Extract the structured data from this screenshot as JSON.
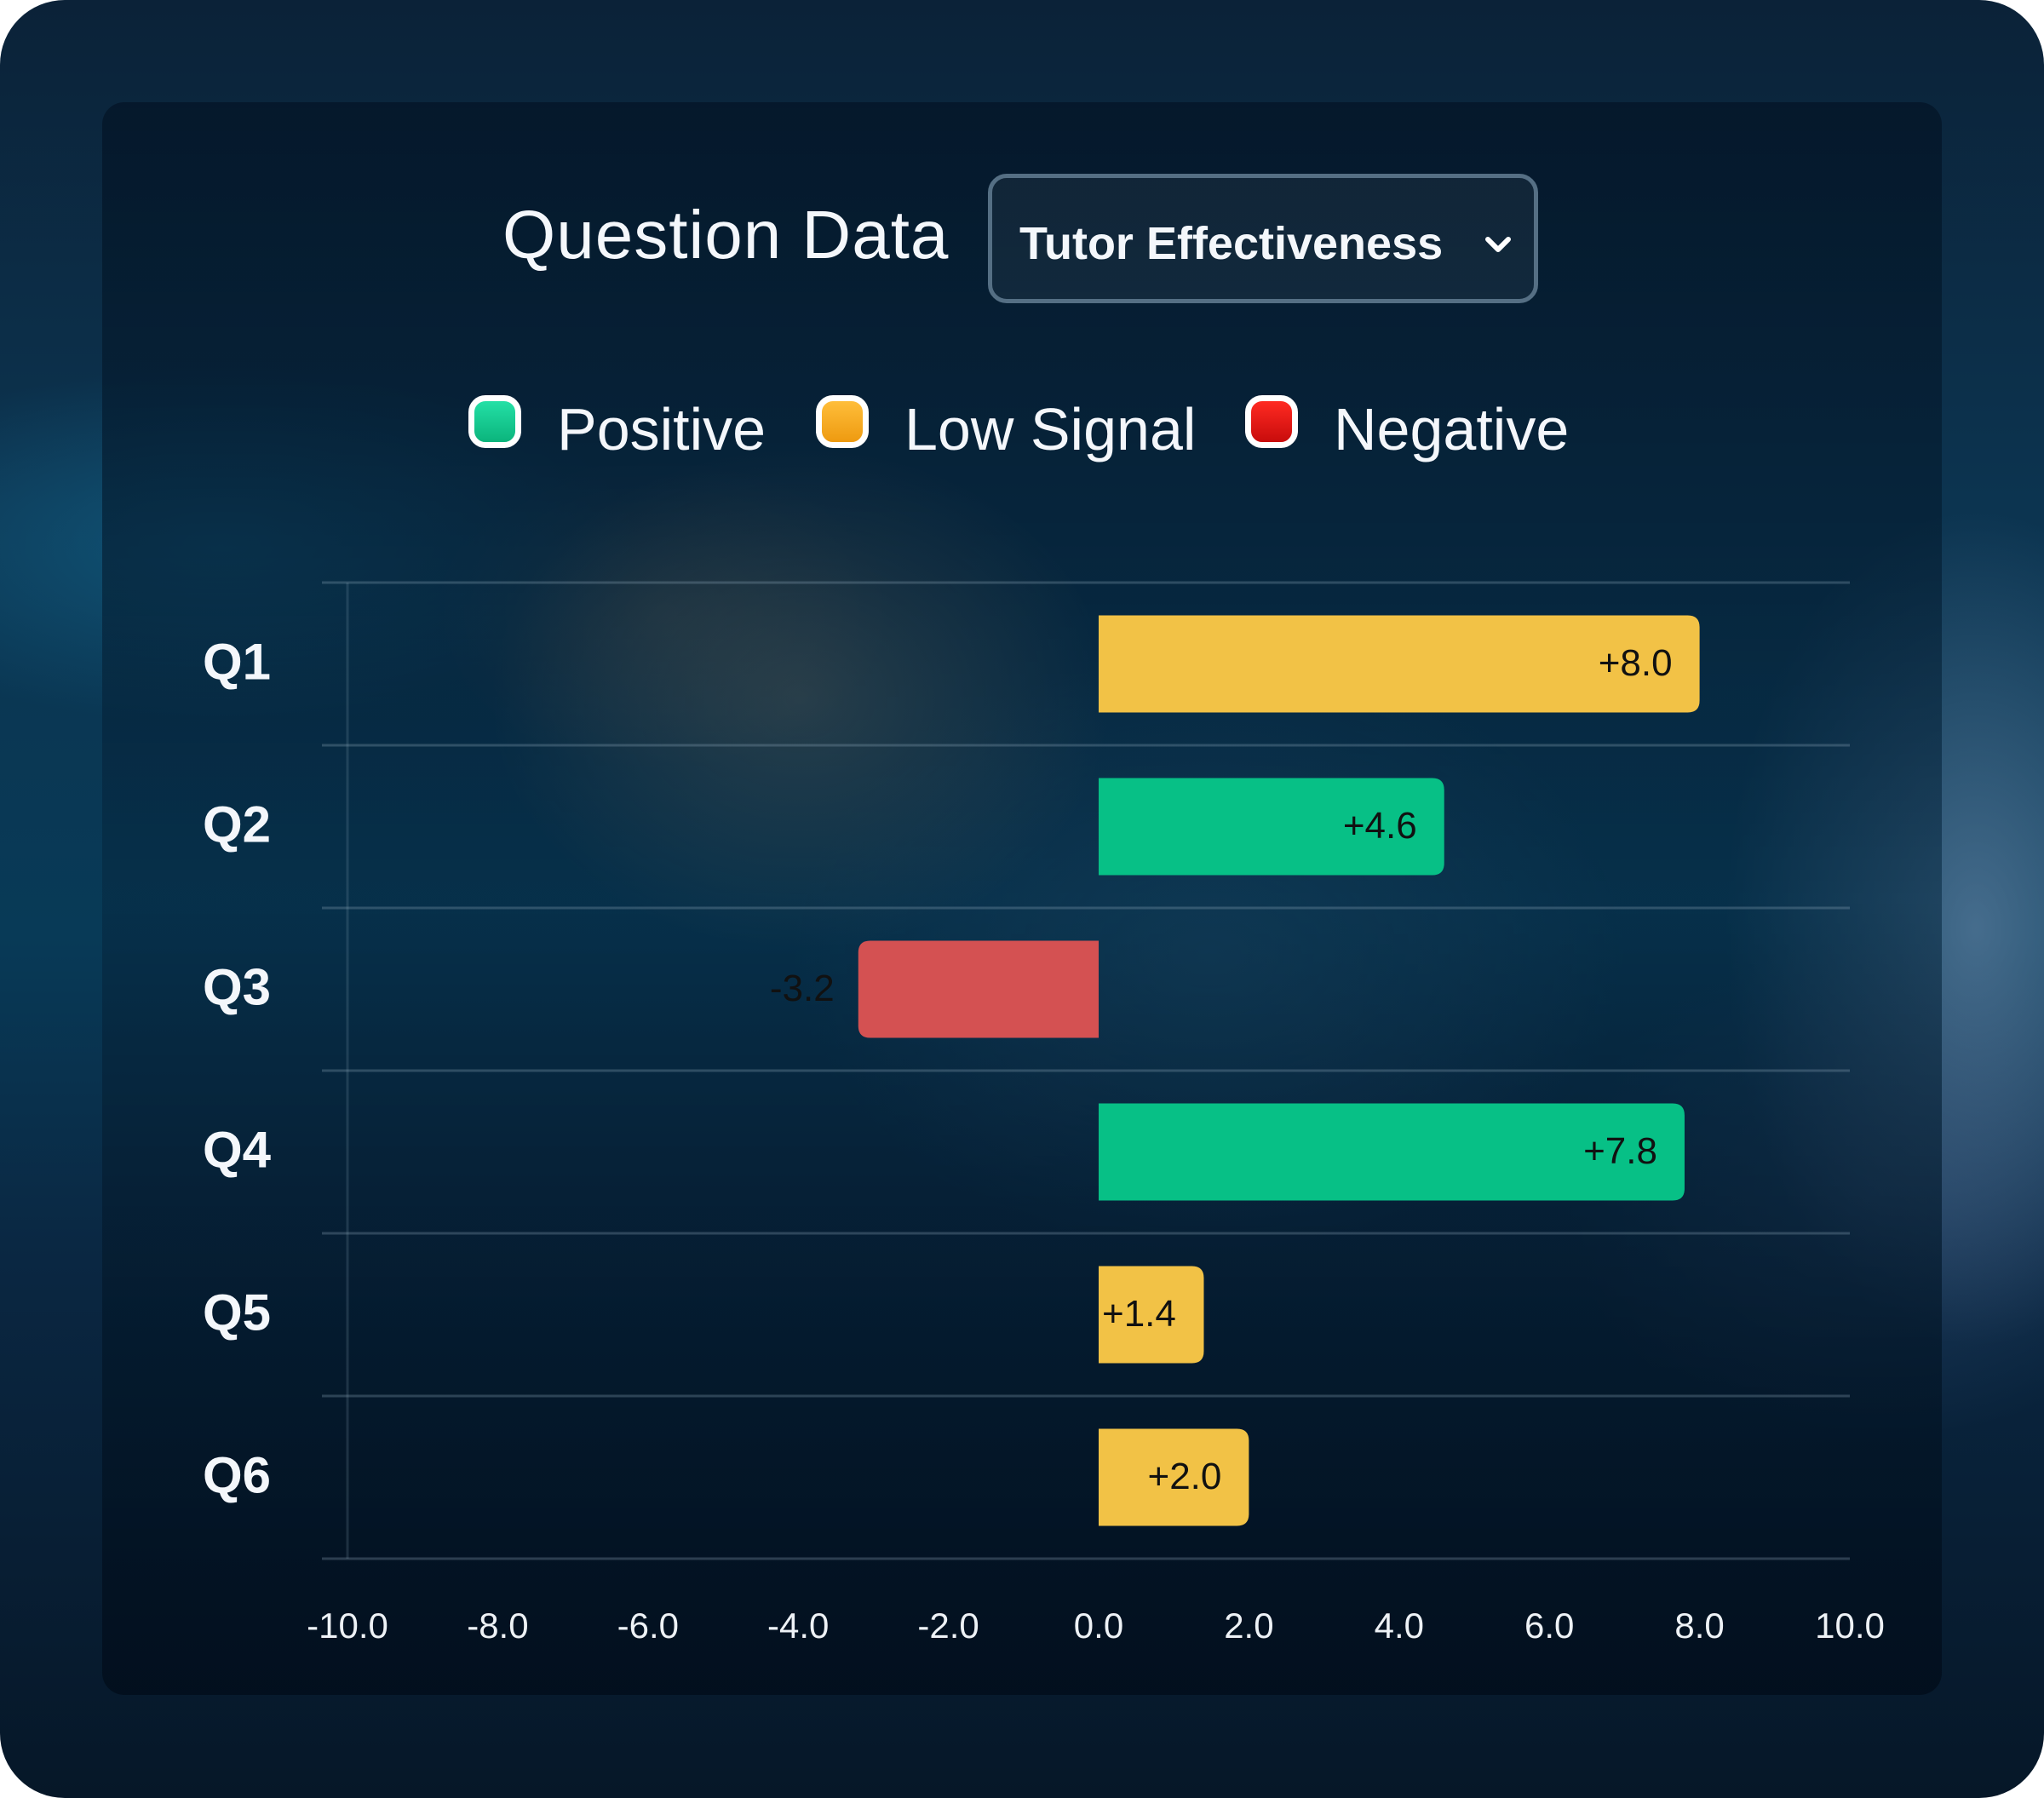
{
  "header": {
    "title": "Question Data",
    "dropdown": {
      "selected": "Tutor Effectiveness",
      "icon": "chevron-down-icon"
    }
  },
  "legend": [
    {
      "label": "Positive",
      "color": "#0cc88c"
    },
    {
      "label": "Low Signal",
      "color": "#f3a217"
    },
    {
      "label": "Negative",
      "color": "#d81212"
    }
  ],
  "chart_data": {
    "type": "bar",
    "orientation": "horizontal",
    "categories": [
      "Q1",
      "Q2",
      "Q3",
      "Q4",
      "Q5",
      "Q6"
    ],
    "values": [
      8.0,
      4.6,
      -3.2,
      7.8,
      1.4,
      2.0
    ],
    "value_labels": [
      "+8.0",
      "+4.6",
      "-3.2",
      "+7.8",
      "+1.4",
      "+2.0"
    ],
    "status": [
      "Low Signal",
      "Positive",
      "Negative",
      "Positive",
      "Low Signal",
      "Low Signal"
    ],
    "bar_colors": [
      "#f2c246",
      "#07c086",
      "#d45152",
      "#07c086",
      "#f2c246",
      "#f2c246"
    ],
    "xlim": [
      -10.0,
      10.0
    ],
    "xticks": [
      "-10.0",
      "-8.0",
      "-6.0",
      "-4.0",
      "-2.0",
      "0.0",
      "2.0",
      "4.0",
      "6.0",
      "8.0",
      "10.0"
    ],
    "grid": "horizontal"
  }
}
